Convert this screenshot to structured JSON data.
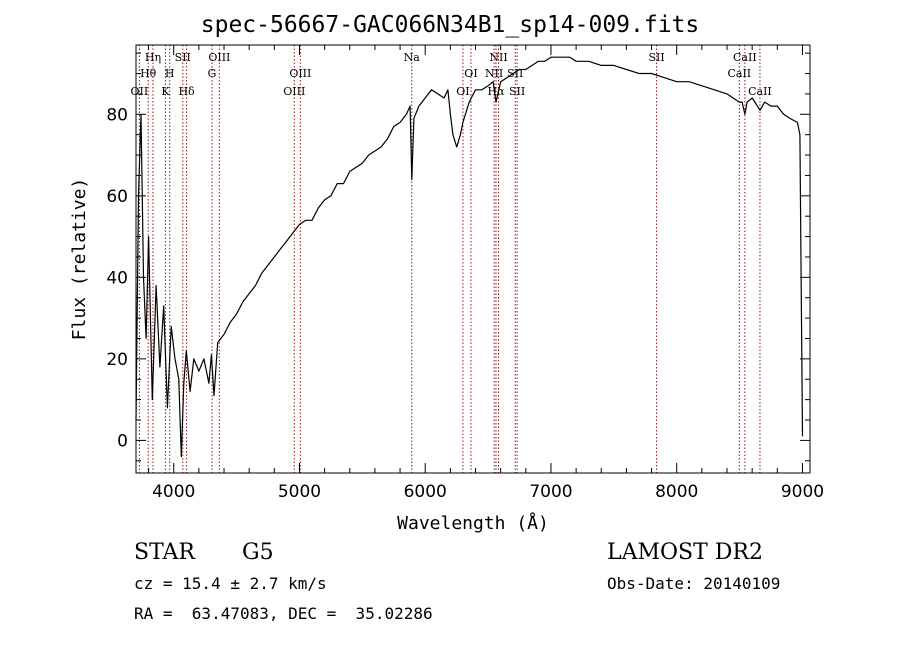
{
  "title": "spec-56667-GAC066N34B1_sp14-009.fits",
  "info": {
    "class": "STAR",
    "subclass": "G5",
    "survey": "LAMOST DR2",
    "cz": "cz = 15.4 ± 2.7 km/s",
    "obs_date": "Obs-Date: 20140109",
    "radec": "RA =  63.47083, DEC =  35.02286"
  },
  "colors": {
    "line": "#000000",
    "marker": "#8b1a1a"
  },
  "chart_data": {
    "type": "line",
    "title": "spec-56667-GAC066N34B1_sp14-009.fits",
    "xlabel": "Wavelength (Å)",
    "ylabel": "Flux (relative)",
    "xlim": [
      3700,
      9060
    ],
    "ylim": [
      -8,
      97
    ],
    "xticks": [
      4000,
      5000,
      6000,
      7000,
      8000,
      9000
    ],
    "yticks": [
      0,
      20,
      40,
      60,
      80
    ],
    "series": [
      {
        "values": [
          [
            3700,
            5
          ],
          [
            3720,
            60
          ],
          [
            3740,
            80
          ],
          [
            3760,
            40
          ],
          [
            3780,
            25
          ],
          [
            3800,
            50
          ],
          [
            3830,
            10
          ],
          [
            3860,
            38
          ],
          [
            3890,
            18
          ],
          [
            3920,
            33
          ],
          [
            3950,
            8
          ],
          [
            3980,
            28
          ],
          [
            4010,
            20
          ],
          [
            4040,
            15
          ],
          [
            4060,
            -4
          ],
          [
            4080,
            14
          ],
          [
            4100,
            22
          ],
          [
            4130,
            12
          ],
          [
            4160,
            20
          ],
          [
            4200,
            17
          ],
          [
            4240,
            20
          ],
          [
            4280,
            14
          ],
          [
            4300,
            21
          ],
          [
            4320,
            11
          ],
          [
            4350,
            24
          ],
          [
            4400,
            26
          ],
          [
            4450,
            29
          ],
          [
            4500,
            31
          ],
          [
            4550,
            34
          ],
          [
            4600,
            36
          ],
          [
            4650,
            38
          ],
          [
            4700,
            41
          ],
          [
            4750,
            43
          ],
          [
            4800,
            45
          ],
          [
            4850,
            47
          ],
          [
            4900,
            49
          ],
          [
            4950,
            51
          ],
          [
            5000,
            53
          ],
          [
            5050,
            54
          ],
          [
            5100,
            54
          ],
          [
            5150,
            57
          ],
          [
            5200,
            59
          ],
          [
            5250,
            60
          ],
          [
            5300,
            63
          ],
          [
            5350,
            63
          ],
          [
            5400,
            66
          ],
          [
            5450,
            67
          ],
          [
            5500,
            68
          ],
          [
            5550,
            70
          ],
          [
            5600,
            71
          ],
          [
            5650,
            72
          ],
          [
            5700,
            74
          ],
          [
            5750,
            77
          ],
          [
            5800,
            78
          ],
          [
            5850,
            80
          ],
          [
            5880,
            82
          ],
          [
            5893,
            64
          ],
          [
            5910,
            79
          ],
          [
            5950,
            82
          ],
          [
            6000,
            84
          ],
          [
            6050,
            86
          ],
          [
            6100,
            85
          ],
          [
            6150,
            84
          ],
          [
            6180,
            86
          ],
          [
            6200,
            80
          ],
          [
            6220,
            75
          ],
          [
            6250,
            72
          ],
          [
            6280,
            75
          ],
          [
            6300,
            78
          ],
          [
            6350,
            83
          ],
          [
            6400,
            86
          ],
          [
            6450,
            86
          ],
          [
            6500,
            87
          ],
          [
            6540,
            88
          ],
          [
            6563,
            83
          ],
          [
            6600,
            88
          ],
          [
            6650,
            89
          ],
          [
            6700,
            90
          ],
          [
            6750,
            91
          ],
          [
            6800,
            91
          ],
          [
            6850,
            92
          ],
          [
            6900,
            93
          ],
          [
            6950,
            93
          ],
          [
            7000,
            94
          ],
          [
            7050,
            94
          ],
          [
            7100,
            94
          ],
          [
            7150,
            94
          ],
          [
            7200,
            93
          ],
          [
            7300,
            93
          ],
          [
            7400,
            92
          ],
          [
            7500,
            92
          ],
          [
            7600,
            91
          ],
          [
            7700,
            90
          ],
          [
            7800,
            90
          ],
          [
            7900,
            89
          ],
          [
            8000,
            88
          ],
          [
            8100,
            88
          ],
          [
            8200,
            87
          ],
          [
            8300,
            86
          ],
          [
            8400,
            85
          ],
          [
            8498,
            83
          ],
          [
            8520,
            83
          ],
          [
            8542,
            80
          ],
          [
            8560,
            83
          ],
          [
            8600,
            84
          ],
          [
            8662,
            81
          ],
          [
            8700,
            83
          ],
          [
            8750,
            82
          ],
          [
            8800,
            82
          ],
          [
            8850,
            80
          ],
          [
            8900,
            79
          ],
          [
            8960,
            78
          ],
          [
            8980,
            75
          ],
          [
            9000,
            1
          ]
        ]
      }
    ],
    "lines": [
      {
        "label": "Hη",
        "wave": 3835,
        "row": 1
      },
      {
        "label": "Hθ",
        "wave": 3797,
        "row": 2
      },
      {
        "label": "OII",
        "wave": 3727,
        "row": 3
      },
      {
        "label": "SII",
        "wave": 4072,
        "row": 1
      },
      {
        "label": "H",
        "wave": 3968,
        "row": 2
      },
      {
        "label": "K",
        "wave": 3934,
        "row": 3
      },
      {
        "label": "Hδ",
        "wave": 4102,
        "row": 3
      },
      {
        "label": "OIII",
        "wave": 4363,
        "row": 1
      },
      {
        "label": "G",
        "wave": 4305,
        "row": 2
      },
      {
        "label": "OIII",
        "wave": 5007,
        "row": 2
      },
      {
        "label": "OIII",
        "wave": 4959,
        "row": 3
      },
      {
        "label": "Na",
        "wave": 5893,
        "row": 1
      },
      {
        "label": "OI",
        "wave": 6364,
        "row": 2
      },
      {
        "label": "OI",
        "wave": 6300,
        "row": 3
      },
      {
        "label": "NII",
        "wave": 6583,
        "row": 1
      },
      {
        "label": "NII",
        "wave": 6548,
        "row": 2
      },
      {
        "label": "Hα",
        "wave": 6563,
        "row": 3
      },
      {
        "label": "SII",
        "wave": 6716,
        "row": 2
      },
      {
        "label": "SII",
        "wave": 6731,
        "row": 3
      },
      {
        "label": "SII",
        "wave": 7840,
        "row": 1
      },
      {
        "label": "CaII",
        "wave": 8542,
        "row": 1
      },
      {
        "label": "CaII",
        "wave": 8498,
        "row": 2
      },
      {
        "label": "CaII",
        "wave": 8662,
        "row": 3
      }
    ]
  }
}
